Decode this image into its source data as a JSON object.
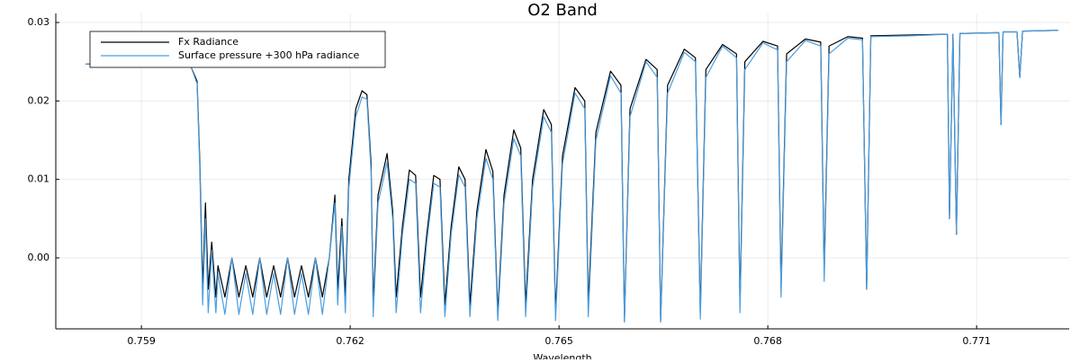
{
  "chart_data": {
    "type": "line",
    "title": "O2 Band",
    "x_label": "Wavelength",
    "xlim": [
      0.75777,
      0.77233
    ],
    "ylim": [
      -0.00905,
      0.03115
    ],
    "xticks": [
      0.759,
      0.762,
      0.765,
      0.768,
      0.771
    ],
    "yticks": [
      {
        "value": 0,
        "label": "0.00"
      },
      0.01,
      0.02,
      0.03
    ],
    "grid": true,
    "legend": "top-left",
    "x": [
      0.7582,
      0.75955,
      0.75971,
      0.7598,
      0.75984,
      0.75988,
      0.75992,
      0.75996,
      0.76001,
      0.76007,
      0.7601,
      0.7602,
      0.7603,
      0.7604,
      0.7605,
      0.7606,
      0.7607,
      0.7608,
      0.7609,
      0.761,
      0.7611,
      0.7612,
      0.7613,
      0.7614,
      0.7615,
      0.7616,
      0.7617,
      0.76178,
      0.76182,
      0.76188,
      0.76193,
      0.76198,
      0.76208,
      0.76217,
      0.76224,
      0.7623,
      0.76233,
      0.7624,
      0.76253,
      0.76261,
      0.76266,
      0.76275,
      0.76285,
      0.76294,
      0.76301,
      0.7631,
      0.7632,
      0.76329,
      0.76336,
      0.76345,
      0.76356,
      0.76365,
      0.76372,
      0.76382,
      0.76395,
      0.76405,
      0.76412,
      0.76421,
      0.76435,
      0.76445,
      0.76452,
      0.76462,
      0.76478,
      0.76489,
      0.76495,
      0.76505,
      0.76523,
      0.76537,
      0.76542,
      0.76553,
      0.76574,
      0.76589,
      0.76594,
      0.76602,
      0.76625,
      0.76641,
      0.76646,
      0.76656,
      0.7668,
      0.76696,
      0.76703,
      0.76711,
      0.76735,
      0.76755,
      0.7676,
      0.76767,
      0.76793,
      0.76814,
      0.76819,
      0.76827,
      0.76854,
      0.76876,
      0.76881,
      0.76888,
      0.76915,
      0.76936,
      0.76942,
      0.76948,
      0.77003,
      0.77058,
      0.77061,
      0.77066,
      0.77071,
      0.77076,
      0.77132,
      0.77135,
      0.77138,
      0.77158,
      0.77162,
      0.77166,
      0.77217
    ],
    "series": [
      {
        "name": "Fx Radiance",
        "color": "#000000",
        "values": [
          0.0247,
          0.0247,
          0.0244,
          0.0225,
          0.012,
          -0.004,
          0.007,
          -0.004,
          0.002,
          -0.005,
          -0.001,
          -0.005,
          0,
          -0.005,
          -0.001,
          -0.005,
          0,
          -0.005,
          -0.001,
          -0.005,
          0,
          -0.005,
          -0.001,
          -0.005,
          0,
          -0.005,
          0,
          0.008,
          -0.004,
          0.005,
          -0.005,
          0.01,
          0.019,
          0.0213,
          0.0208,
          0.012,
          -0.006,
          0.008,
          0.0133,
          0.006,
          -0.005,
          0.004,
          0.0112,
          0.0105,
          -0.005,
          0.003,
          0.0105,
          0.01,
          -0.006,
          0.004,
          0.0116,
          0.01,
          -0.006,
          0.006,
          0.0138,
          0.011,
          -0.007,
          0.008,
          0.0163,
          0.014,
          -0.006,
          0.01,
          0.0189,
          0.017,
          -0.007,
          0.013,
          0.0217,
          0.02,
          -0.006,
          0.016,
          0.0238,
          0.022,
          -0.008,
          0.019,
          0.0253,
          0.024,
          -0.008,
          0.022,
          0.0266,
          0.0255,
          -0.007,
          0.024,
          0.0272,
          0.026,
          -0.006,
          0.025,
          0.0276,
          0.027,
          -0.004,
          0.026,
          0.0279,
          0.0275,
          -0.002,
          0.027,
          0.0282,
          0.028,
          -0.004,
          0.0283,
          0.0284,
          0.0285,
          0.005,
          0.0285,
          0.003,
          0.0286,
          0.0287,
          0.017,
          0.0288,
          0.0288,
          0.023,
          0.0289,
          0.029
        ]
      },
      {
        "name": "Surface pressure +300 hPa radiance",
        "color": "#4a9de0",
        "values": [
          0.0247,
          0.0247,
          0.0244,
          0.0222,
          0.011,
          -0.006,
          0.005,
          -0.007,
          0.001,
          -0.007,
          -0.002,
          -0.0072,
          0,
          -0.0072,
          -0.002,
          -0.0072,
          0,
          -0.0072,
          -0.002,
          -0.0072,
          0,
          -0.0072,
          -0.002,
          -0.0072,
          0,
          -0.0072,
          0,
          0.007,
          -0.006,
          0.004,
          -0.007,
          0.009,
          0.018,
          0.0205,
          0.0202,
          0.011,
          -0.0075,
          0.007,
          0.0122,
          0.005,
          -0.007,
          0.003,
          0.01,
          0.0095,
          -0.007,
          0.002,
          0.0095,
          0.009,
          -0.0075,
          0.003,
          0.0106,
          0.009,
          -0.0075,
          0.005,
          0.0127,
          0.01,
          -0.008,
          0.007,
          0.0152,
          0.013,
          -0.0075,
          0.009,
          0.018,
          0.016,
          -0.008,
          0.012,
          0.021,
          0.019,
          -0.0075,
          0.015,
          0.0232,
          0.021,
          -0.0082,
          0.018,
          0.025,
          0.023,
          -0.0082,
          0.021,
          0.0262,
          0.025,
          -0.0078,
          0.023,
          0.027,
          0.0255,
          -0.007,
          0.024,
          0.0274,
          0.0265,
          -0.005,
          0.025,
          0.0277,
          0.027,
          -0.003,
          0.026,
          0.028,
          0.0278,
          -0.004,
          0.0282,
          0.0283,
          0.0285,
          0.005,
          0.0285,
          0.003,
          0.0286,
          0.0287,
          0.017,
          0.0288,
          0.0288,
          0.023,
          0.0289,
          0.029
        ]
      }
    ]
  }
}
